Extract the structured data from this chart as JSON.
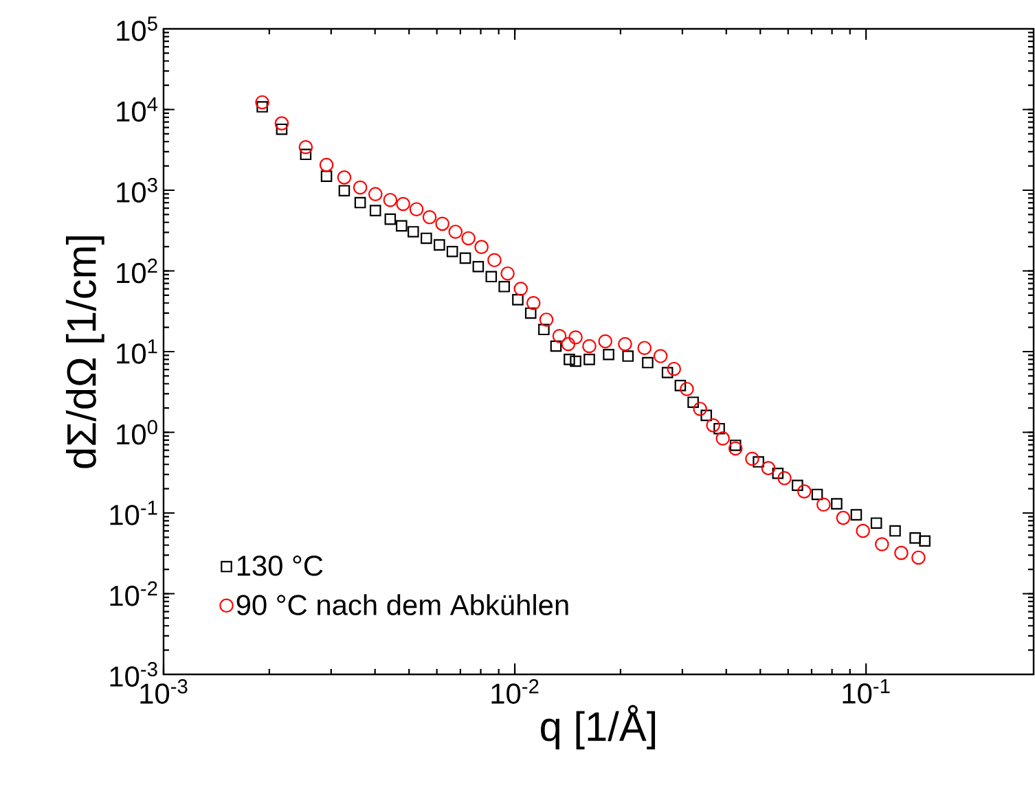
{
  "chart_data": {
    "type": "scatter",
    "xlabel": "q [1/Å]",
    "ylabel": "dΣ/dΩ [1/cm]",
    "log": "xy",
    "grid": false,
    "legend": "bottom left",
    "xlim": [
      0.001,
      0.3
    ],
    "ylim": [
      0.001,
      100000
    ],
    "xticks": [
      {
        "value": 0.001,
        "label": "10$^{-3}$"
      },
      {
        "value": 0.01,
        "label": "10$^{-2}$"
      },
      {
        "value": 0.1,
        "label": "10$^{-1}$"
      }
    ],
    "yticks": [
      {
        "value": 0.001,
        "label": "10$^{-3}$"
      },
      {
        "value": 0.01,
        "label": "10$^{-2}$"
      },
      {
        "value": 0.1,
        "label": "10$^{-1}$"
      },
      {
        "value": 1,
        "label": "10$^{0}$"
      },
      {
        "value": 10,
        "label": "10$^{1}$"
      },
      {
        "value": 100,
        "label": "10$^{2}$"
      },
      {
        "value": 1000,
        "label": "10$^{3}$"
      },
      {
        "value": 10000,
        "label": "10$^{4}$"
      },
      {
        "value": 100000,
        "label": "10$^{5}$"
      }
    ],
    "series": [
      {
        "name": "130 °C",
        "color": "#000000",
        "marker": "square",
        "x": [
          0.00191,
          0.00217,
          0.00254,
          0.00291,
          0.00327,
          0.00363,
          0.00401,
          0.00442,
          0.00476,
          0.00514,
          0.0056,
          0.0061,
          0.00664,
          0.00723,
          0.00787,
          0.00857,
          0.00933,
          0.0102,
          0.0111,
          0.0121,
          0.0131,
          0.0143,
          0.0149,
          0.0163,
          0.0185,
          0.021,
          0.0239,
          0.0272,
          0.0296,
          0.0322,
          0.0351,
          0.0382,
          0.0425,
          0.0494,
          0.0561,
          0.0638,
          0.0726,
          0.0825,
          0.0938,
          0.107,
          0.121,
          0.138,
          0.147
        ],
        "values": [
          10800,
          5700,
          2780,
          1490,
          986,
          702,
          560,
          438,
          362,
          306,
          254,
          210,
          174,
          144,
          113,
          85,
          64,
          44,
          30,
          18.8,
          11.7,
          8.0,
          7.6,
          8.0,
          9.2,
          8.8,
          7.3,
          5.5,
          3.8,
          2.36,
          1.62,
          1.11,
          0.69,
          0.43,
          0.31,
          0.22,
          0.17,
          0.13,
          0.095,
          0.075,
          0.06,
          0.049,
          0.045
        ]
      },
      {
        "name": "90 °C nach dem Abkühlen",
        "color": "#ff0000",
        "marker": "circle",
        "x": [
          0.00191,
          0.00217,
          0.00254,
          0.00291,
          0.00327,
          0.00363,
          0.00401,
          0.00442,
          0.00481,
          0.00525,
          0.00572,
          0.00622,
          0.00678,
          0.00738,
          0.00804,
          0.00875,
          0.00954,
          0.0104,
          0.0113,
          0.0123,
          0.0134,
          0.0142,
          0.0149,
          0.0163,
          0.0181,
          0.0206,
          0.0234,
          0.026,
          0.0284,
          0.0309,
          0.0337,
          0.0367,
          0.0391,
          0.0425,
          0.0474,
          0.0527,
          0.0586,
          0.0667,
          0.0757,
          0.0861,
          0.098,
          0.111,
          0.126,
          0.141
        ],
        "values": [
          12300,
          6740,
          3420,
          2060,
          1440,
          1080,
          895,
          757,
          676,
          581,
          463,
          384,
          306,
          254,
          198,
          136,
          93,
          60,
          40,
          24.9,
          15.6,
          12.4,
          15.0,
          11.7,
          13.4,
          12.4,
          11.1,
          8.8,
          6.1,
          3.44,
          1.95,
          1.22,
          0.84,
          0.63,
          0.47,
          0.36,
          0.27,
          0.185,
          0.127,
          0.087,
          0.06,
          0.041,
          0.032,
          0.028
        ]
      }
    ]
  }
}
